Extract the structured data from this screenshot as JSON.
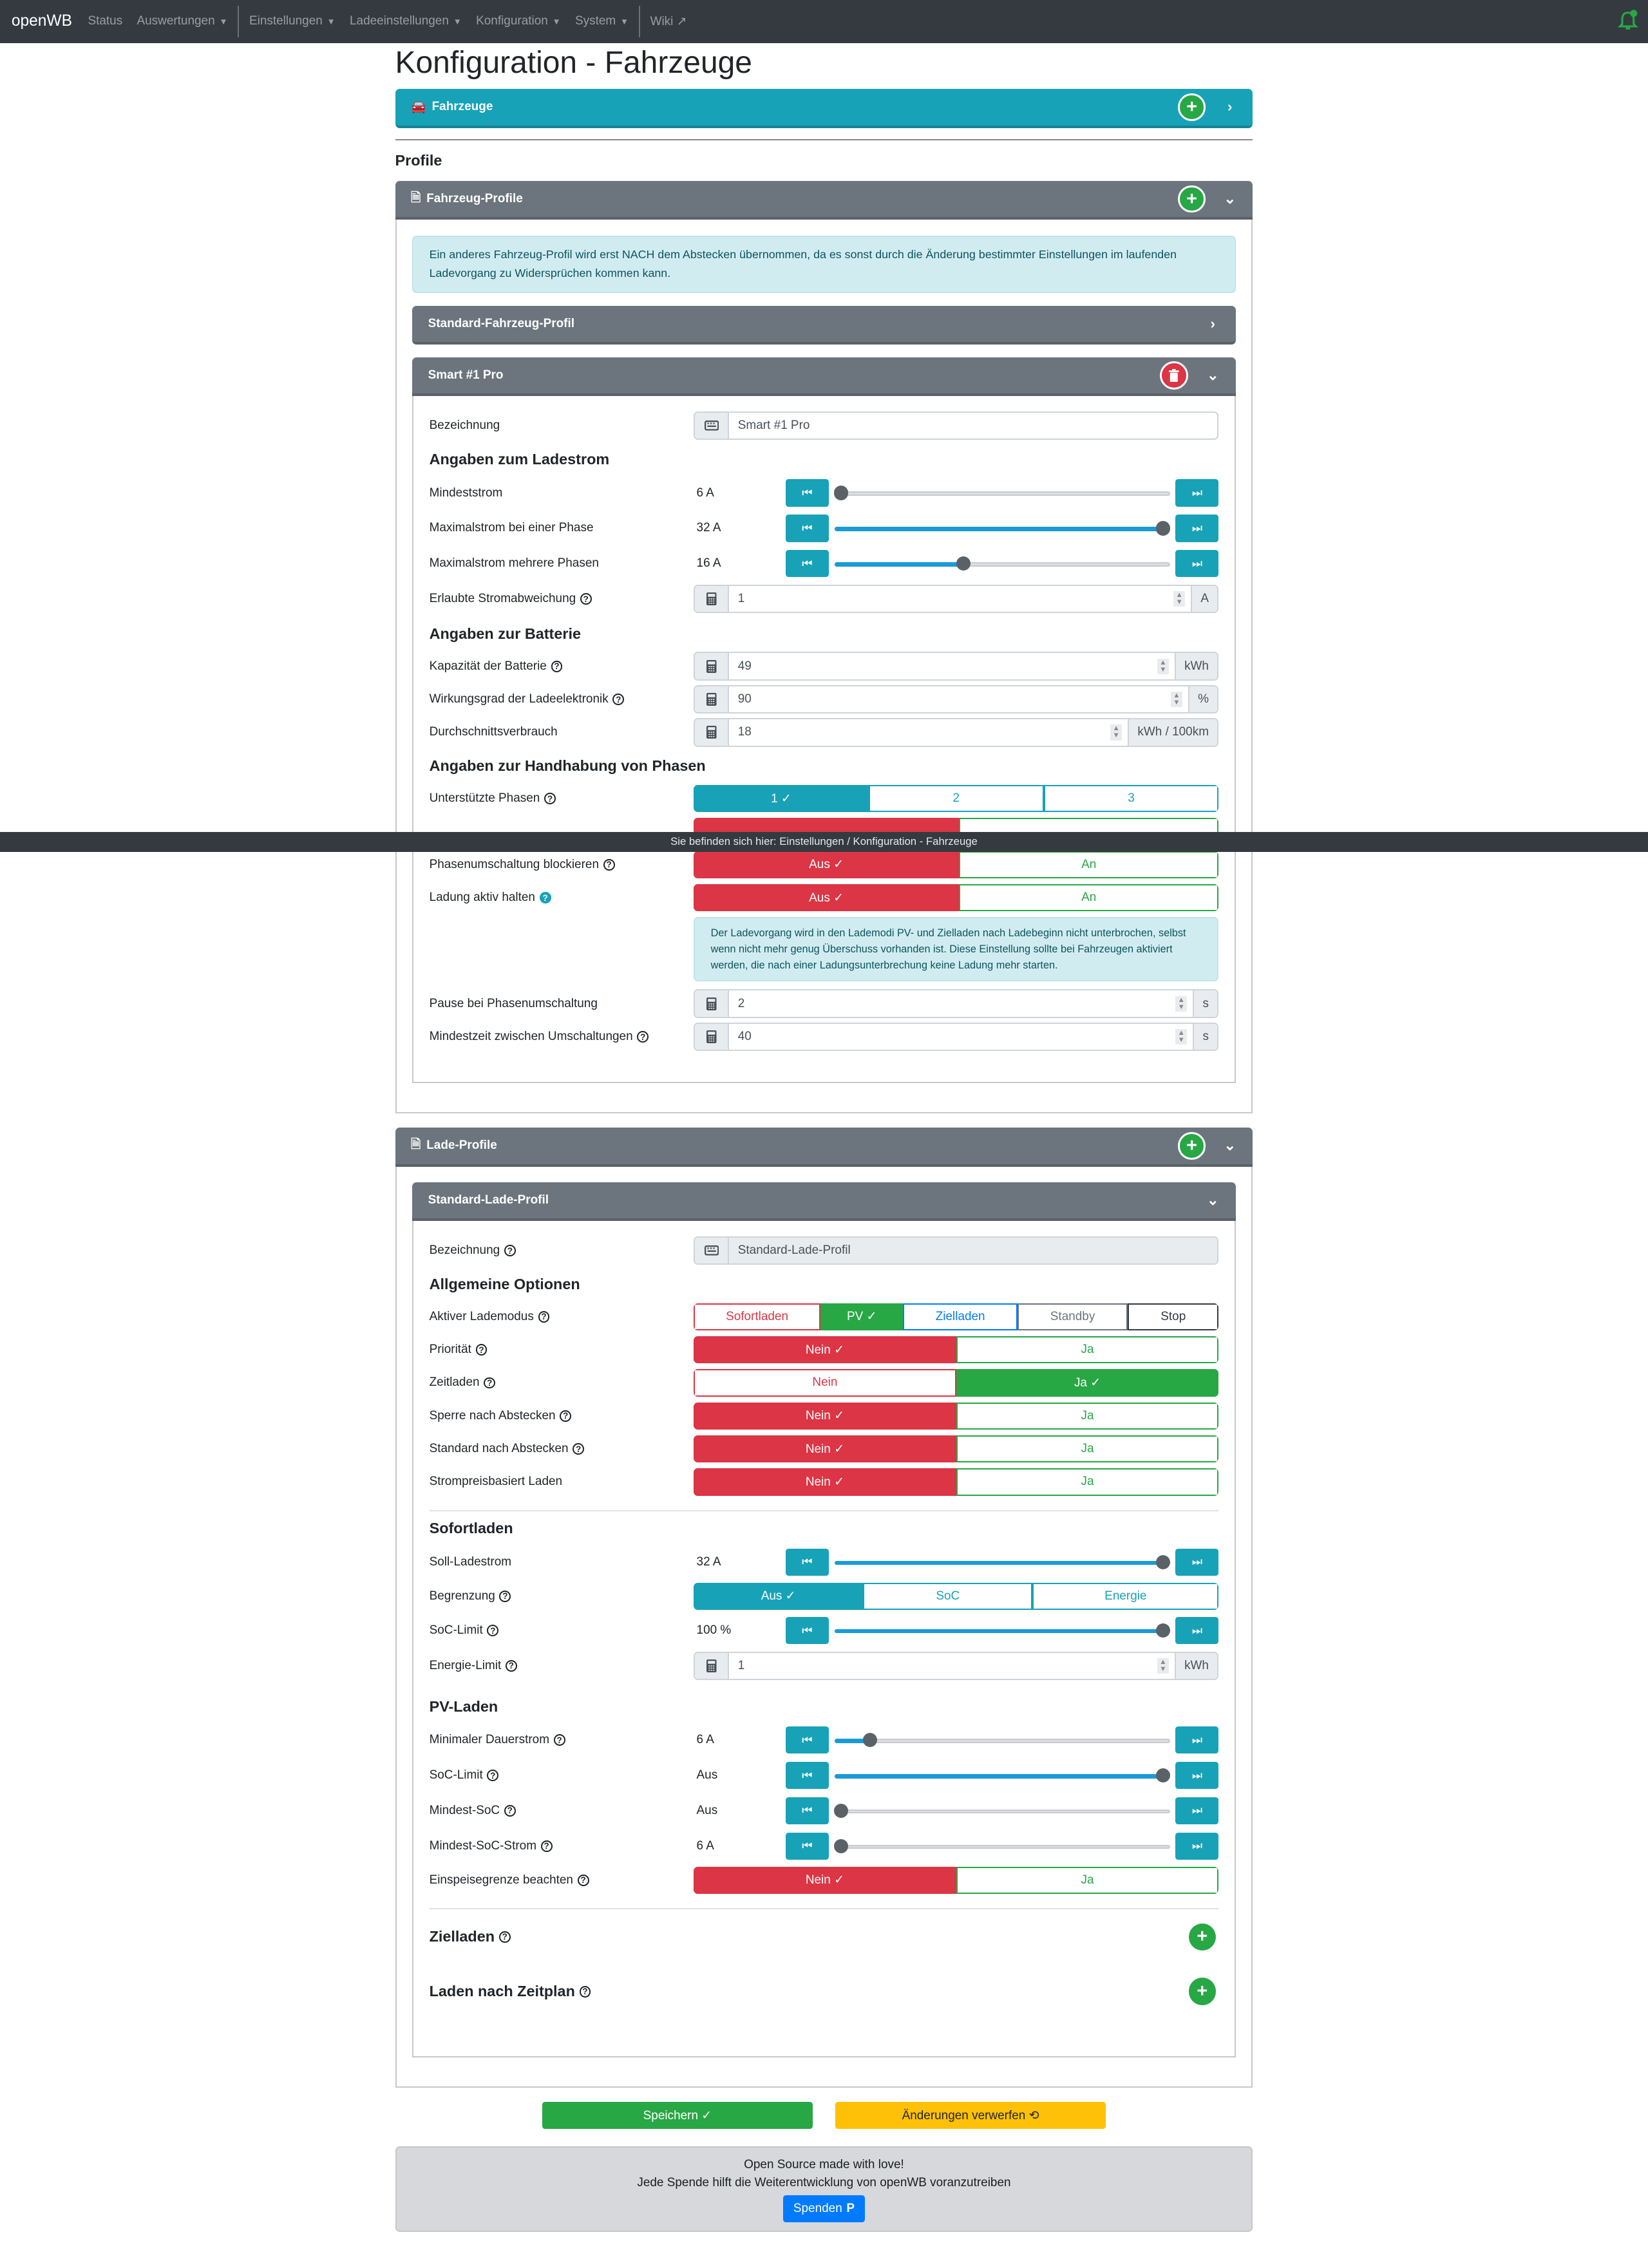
{
  "nav": {
    "brand": "openWB",
    "items": [
      "Status",
      "Auswertungen",
      "Einstellungen",
      "Ladeeinstellungen",
      "Konfiguration",
      "System",
      "Wiki"
    ]
  },
  "page": {
    "title": "Konfiguration - Fahrzeuge",
    "vehicles_card": "Fahrzeuge",
    "profile_heading": "Profile"
  },
  "location_bar": "Sie befinden sich hier: Einstellungen / Konfiguration - Fahrzeuge",
  "vehicle_profiles": {
    "title": "Fahrzeug-Profile",
    "info": "Ein anderes Fahrzeug-Profil wird erst NACH dem Abstecken übernommen, da es sonst durch die Änderung bestimmter Einstellungen im laufenden Ladevorgang zu Widersprüchen kommen kann.",
    "standard": "Standard-Fahrzeug-Profil",
    "smart": {
      "title": "Smart #1 Pro",
      "name_label": "Bezeichnung",
      "name_value": "Smart #1 Pro",
      "h_current": "Angaben zum Ladestrom",
      "min_current": {
        "label": "Mindeststrom",
        "value": "6 A",
        "fraction": 0
      },
      "max_one": {
        "label": "Maximalstrom bei einer Phase",
        "value": "32 A",
        "fraction": 1
      },
      "max_multi": {
        "label": "Maximalstrom mehrere Phasen",
        "value": "16 A",
        "fraction": 0.38
      },
      "deviation": {
        "label": "Erlaubte Stromabweichung",
        "value": "1",
        "unit": "A"
      },
      "h_battery": "Angaben zur Batterie",
      "capacity": {
        "label": "Kapazität der Batterie",
        "value": "49",
        "unit": "kWh"
      },
      "efficiency": {
        "label": "Wirkungsgrad der Ladeelektronik",
        "value": "90",
        "unit": "%"
      },
      "consumption": {
        "label": "Durchschnittsverbrauch",
        "value": "18",
        "unit": "kWh / 100km"
      },
      "h_phases": "Angaben zur Handhabung von Phasen",
      "phases": {
        "label": "Unterstützte Phasen",
        "options": [
          "1 ✓",
          "2",
          "3"
        ]
      },
      "block_switch": {
        "label": "Phasenumschaltung blockieren",
        "options": [
          "Aus ✓",
          "An"
        ]
      },
      "keep_active": {
        "label": "Ladung aktiv halten",
        "options": [
          "Aus ✓",
          "An"
        ]
      },
      "keep_info": "Der Ladevorgang wird in den Lademodi PV- und Zielladen nach Ladebeginn nicht unterbrochen, selbst wenn nicht mehr genug Überschuss vorhanden ist. Diese Einstellung sollte bei Fahrzeugen aktiviert werden, die nach einer Ladungsunterbrechung keine Ladung mehr starten.",
      "pause": {
        "label": "Pause bei Phasenumschaltung",
        "value": "2",
        "unit": "s"
      },
      "min_time": {
        "label": "Mindestzeit zwischen Umschaltungen",
        "value": "40",
        "unit": "s"
      }
    }
  },
  "charge_profiles": {
    "title": "Lade-Profile",
    "standard": {
      "title": "Standard-Lade-Profil",
      "name_label": "Bezeichnung",
      "name_value": "Standard-Lade-Profil",
      "h_general": "Allgemeine Optionen",
      "mode": {
        "label": "Aktiver Lademodus",
        "options": [
          "Sofortladen",
          "PV ✓",
          "Zielladen",
          "Standby",
          "Stop"
        ]
      },
      "priority": {
        "label": "Priorität",
        "options": [
          "Nein ✓",
          "Ja"
        ]
      },
      "time_charging": {
        "label": "Zeitladen",
        "options": [
          "Nein",
          "Ja ✓"
        ]
      },
      "lock_after": {
        "label": "Sperre nach Abstecken",
        "options": [
          "Nein ✓",
          "Ja"
        ]
      },
      "default_after": {
        "label": "Standard nach Abstecken",
        "options": [
          "Nein ✓",
          "Ja"
        ]
      },
      "price_based": {
        "label": "Strompreisbasiert Laden",
        "options": [
          "Nein ✓",
          "Ja"
        ]
      },
      "h_instant": "Sofortladen",
      "target_current": {
        "label": "Soll-Ladestrom",
        "value": "32 A",
        "fraction": 1
      },
      "limit": {
        "label": "Begrenzung",
        "options": [
          "Aus ✓",
          "SoC",
          "Energie"
        ]
      },
      "soc_limit": {
        "label": "SoC-Limit",
        "value": "100 %",
        "fraction": 1
      },
      "energy_limit": {
        "label": "Energie-Limit",
        "value": "1",
        "unit": "kWh"
      },
      "h_pv": "PV-Laden",
      "pv_min_current": {
        "label": "Minimaler Dauerstrom",
        "value": "6 A",
        "fraction": 0.09
      },
      "pv_soc_limit": {
        "label": "SoC-Limit",
        "value": "Aus",
        "fraction": 1
      },
      "pv_min_soc": {
        "label": "Mindest-SoC",
        "value": "Aus",
        "fraction": 0
      },
      "pv_min_soc_current": {
        "label": "Mindest-SoC-Strom",
        "value": "6 A",
        "fraction": 0
      },
      "feed_in": {
        "label": "Einspeisegrenze beachten",
        "options": [
          "Nein ✓",
          "Ja"
        ]
      },
      "h_target": "Zielladen",
      "h_schedule": "Laden nach Zeitplan"
    }
  },
  "footer": {
    "save": "Speichern ✓",
    "discard": "Änderungen verwerfen ⟲",
    "line1": "Open Source made with love!",
    "line2": "Jede Spende hilft die Weiterentwicklung von openWB voranzutreiben",
    "donate": "Spenden"
  }
}
